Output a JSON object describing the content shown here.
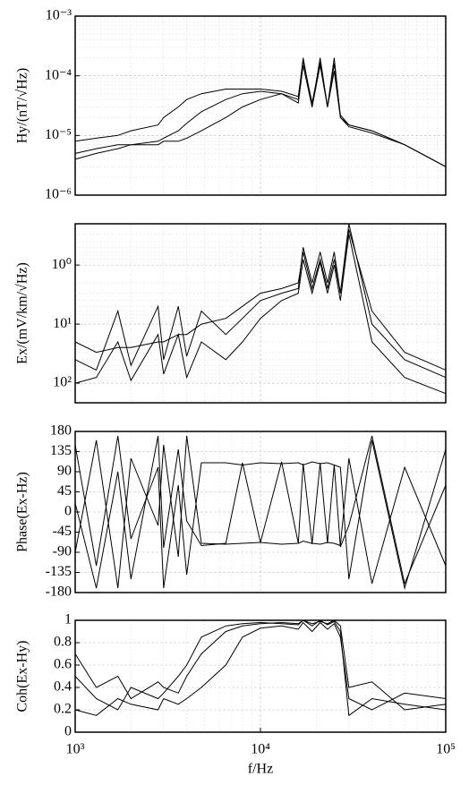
{
  "chart_data": [
    {
      "type": "line",
      "ylabel": "Hy/(nT/√Hz)",
      "xlog": true,
      "ylog": true,
      "grid": true,
      "xlim": [
        1000,
        100000
      ],
      "ylim": [
        1e-06,
        0.001
      ],
      "yticks": [
        {
          "value": 1e-06,
          "label": "10⁻⁶"
        },
        {
          "value": 1e-05,
          "label": "10⁻⁵"
        },
        {
          "value": 0.0001,
          "label": "10⁻⁴"
        },
        {
          "value": 0.001,
          "label": "10⁻³"
        }
      ],
      "x": [
        1000,
        1300,
        1700,
        2000,
        2800,
        3000,
        3600,
        4000,
        4800,
        6500,
        8000,
        10000,
        13000,
        16000,
        17000,
        19000,
        21000,
        23000,
        25000,
        27000,
        30000,
        40000,
        60000,
        100000
      ],
      "series": [
        {
          "color": "#000000",
          "values": [
            5e-06,
            6e-06,
            7e-06,
            7e-06,
            8e-06,
            9e-06,
            1.2e-05,
            1.6e-05,
            2.5e-05,
            4e-05,
            5e-05,
            5.5e-05,
            5e-05,
            4e-05,
            0.0002,
            3e-05,
            0.0002,
            3e-05,
            0.0002,
            2e-05,
            1.5e-05,
            1.2e-05,
            7e-06,
            3e-06
          ]
        },
        {
          "color": "#000000",
          "values": [
            4e-06,
            5e-06,
            6e-06,
            7e-06,
            7e-06,
            8e-06,
            8e-06,
            9e-06,
            1.2e-05,
            2e-05,
            3e-05,
            4e-05,
            5e-05,
            3.5e-05,
            0.00015,
            3e-05,
            0.00015,
            3e-05,
            0.00012,
            2e-05,
            1.4e-05,
            1.1e-05,
            7e-06,
            3e-06
          ]
        },
        {
          "color": "#000000",
          "values": [
            8e-06,
            9e-06,
            1e-05,
            1.2e-05,
            1.5e-05,
            2e-05,
            3e-05,
            4e-05,
            5e-05,
            6e-05,
            6e-05,
            6e-05,
            5.5e-05,
            4.5e-05,
            0.00018,
            3.5e-05,
            0.00017,
            3e-05,
            0.00016,
            2.2e-05,
            1.5e-05,
            1.2e-05,
            7e-06,
            3e-06
          ]
        }
      ]
    },
    {
      "type": "line",
      "ylabel": "Ex/(mV/km/√Hz)",
      "xlog": true,
      "ylog": true,
      "grid": true,
      "xlim": [
        1000,
        100000
      ],
      "ylim": [
        215,
        0.2
      ],
      "yticks": [
        {
          "value": 1,
          "label": "10⁰"
        },
        {
          "value": 10,
          "label": "10¹"
        },
        {
          "value": 100,
          "label": "10²"
        }
      ],
      "x": [
        1000,
        1300,
        1700,
        2000,
        2800,
        3000,
        3600,
        4000,
        4800,
        6500,
        8000,
        10000,
        13000,
        16000,
        17000,
        19000,
        21000,
        23000,
        25000,
        27000,
        30000,
        40000,
        60000,
        100000
      ],
      "series": [
        {
          "color": "#000000",
          "values": [
            40,
            60,
            6,
            50,
            5,
            40,
            5,
            35,
            6,
            15,
            8,
            4,
            3,
            2.5,
            0.5,
            2,
            0.6,
            2,
            0.6,
            3,
            0.2,
            10,
            40,
            80
          ]
        },
        {
          "color": "#000000",
          "values": [
            100,
            80,
            20,
            90,
            15,
            70,
            15,
            80,
            20,
            40,
            20,
            8,
            4,
            3,
            0.8,
            3,
            0.9,
            3,
            1,
            4,
            0.3,
            20,
            80,
            150
          ]
        },
        {
          "color": "#000000",
          "values": [
            20,
            30,
            25,
            25,
            20,
            20,
            15,
            15,
            10,
            8,
            5,
            3,
            2.5,
            2,
            0.6,
            2.5,
            0.8,
            2.5,
            0.8,
            3,
            0.25,
            6,
            30,
            60
          ]
        }
      ]
    },
    {
      "type": "line",
      "ylabel": "Phase(Ex-Hz)",
      "xlog": true,
      "grid": true,
      "xlim": [
        1000,
        100000
      ],
      "ylim": [
        -180,
        180
      ],
      "yticks": [
        -180,
        -135,
        -90,
        -45,
        0,
        45,
        90,
        135,
        180
      ],
      "x": [
        1000,
        1300,
        1700,
        2000,
        2800,
        3000,
        3600,
        4000,
        4800,
        6500,
        8000,
        10000,
        13000,
        16000,
        17000,
        19000,
        21000,
        23000,
        25000,
        27000,
        30000,
        40000,
        60000,
        100000
      ],
      "series": [
        {
          "color": "#000000",
          "values": [
            150,
            -120,
            170,
            -60,
            100,
            -170,
            60,
            -140,
            110,
            110,
            105,
            110,
            108,
            110,
            105,
            112,
            108,
            110,
            105,
            100,
            -150,
            160,
            -170,
            140
          ]
        },
        {
          "color": "#000000",
          "values": [
            -90,
            160,
            -170,
            120,
            -30,
            150,
            -100,
            170,
            -70,
            -72,
            -70,
            -68,
            -72,
            -70,
            -65,
            -70,
            -72,
            -68,
            -70,
            -75,
            120,
            -160,
            100,
            -120
          ]
        },
        {
          "color": "#000000",
          "values": [
            20,
            -170,
            90,
            -150,
            170,
            -80,
            140,
            -20,
            -75,
            -70,
            110,
            -68,
            112,
            -70,
            108,
            -72,
            110,
            -70,
            106,
            -78,
            -30,
            170,
            -160,
            60
          ]
        }
      ]
    },
    {
      "type": "line",
      "ylabel": "Coh(Ex-Hy)",
      "xlabel": "f/Hz",
      "xlog": true,
      "grid": true,
      "xlim": [
        1000,
        100000
      ],
      "ylim": [
        0,
        1
      ],
      "xticks": [
        {
          "value": 1000,
          "label": "10³"
        },
        {
          "value": 10000,
          "label": "10⁴"
        },
        {
          "value": 100000,
          "label": "10⁵"
        }
      ],
      "yticks": [
        0,
        0.2,
        0.4,
        0.6,
        0.8,
        1
      ],
      "x": [
        1000,
        1300,
        1700,
        2000,
        2800,
        3000,
        3600,
        4000,
        4800,
        6500,
        8000,
        10000,
        13000,
        16000,
        17000,
        19000,
        21000,
        23000,
        25000,
        27000,
        30000,
        40000,
        60000,
        100000
      ],
      "series": [
        {
          "color": "#000000",
          "values": [
            0.5,
            0.3,
            0.2,
            0.4,
            0.3,
            0.35,
            0.5,
            0.6,
            0.85,
            0.95,
            0.97,
            0.98,
            0.97,
            0.96,
            1,
            0.95,
            1,
            0.96,
            0.99,
            0.9,
            0.15,
            0.3,
            0.25,
            0.2
          ]
        },
        {
          "color": "#000000",
          "values": [
            0.2,
            0.15,
            0.3,
            0.25,
            0.2,
            0.3,
            0.25,
            0.3,
            0.4,
            0.6,
            0.85,
            0.93,
            0.95,
            0.92,
            0.98,
            0.9,
            0.98,
            0.92,
            0.97,
            0.85,
            0.3,
            0.2,
            0.35,
            0.3
          ]
        },
        {
          "color": "#000000",
          "values": [
            0.7,
            0.4,
            0.5,
            0.3,
            0.45,
            0.4,
            0.35,
            0.5,
            0.7,
            0.9,
            0.95,
            0.97,
            0.98,
            0.97,
            1,
            0.97,
            0.99,
            0.97,
            1,
            0.95,
            0.4,
            0.45,
            0.2,
            0.25
          ]
        }
      ]
    }
  ]
}
